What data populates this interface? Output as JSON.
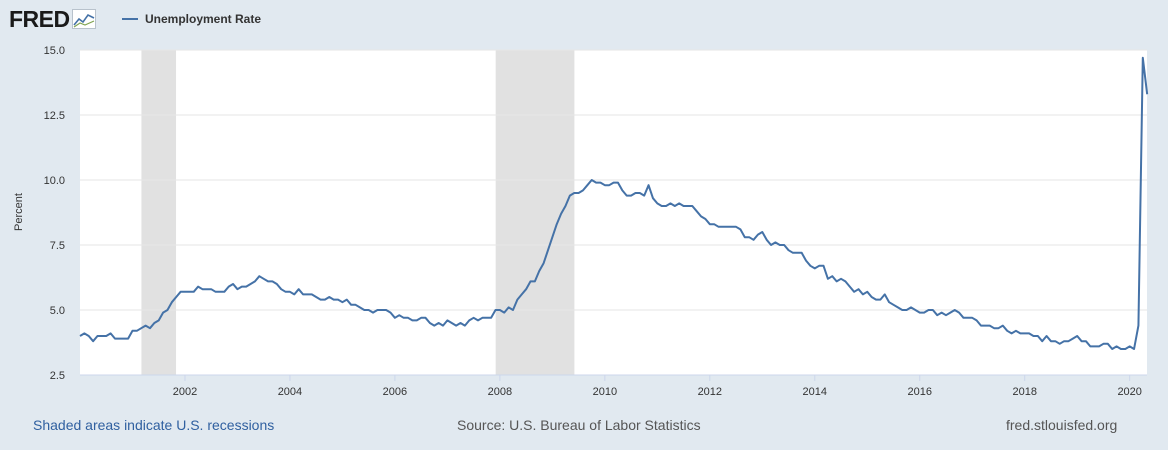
{
  "header": {
    "logo_text": "FRED",
    "logo_icon": "fred-chart-icon"
  },
  "footer": {
    "recessions_note": "Shaded areas indicate U.S. recessions",
    "source": "Source: U.S. Bureau of Labor Statistics",
    "site": "fred.stlouisfed.org"
  },
  "colors": {
    "series": "#4572a7",
    "recession_shade": "#e1e1e1",
    "page_background": "#e1e9f0",
    "plot_background": "#ffffff",
    "link": "#3060a0"
  },
  "chart_data": {
    "type": "line",
    "title": "",
    "xlabel": "",
    "ylabel": "Percent",
    "xlim": [
      2000.0,
      2020.33
    ],
    "ylim": [
      2.5,
      15.0
    ],
    "y_ticks": [
      "2.5",
      "5.0",
      "7.5",
      "10.0",
      "12.5",
      "15.0"
    ],
    "x_ticks": [
      "2002",
      "2004",
      "2006",
      "2008",
      "2010",
      "2012",
      "2014",
      "2016",
      "2018",
      "2020"
    ],
    "grid": "horizontal",
    "legend": "top-left",
    "recessions": [
      {
        "start": 2001.17,
        "end": 2001.83
      },
      {
        "start": 2007.92,
        "end": 2009.42
      }
    ],
    "series": [
      {
        "name": "Unemployment Rate",
        "color": "#4572a7",
        "start_year": 2000,
        "start_month": 1,
        "frequency": "monthly",
        "values": [
          4.0,
          4.1,
          4.0,
          3.8,
          4.0,
          4.0,
          4.0,
          4.1,
          3.9,
          3.9,
          3.9,
          3.9,
          4.2,
          4.2,
          4.3,
          4.4,
          4.3,
          4.5,
          4.6,
          4.9,
          5.0,
          5.3,
          5.5,
          5.7,
          5.7,
          5.7,
          5.7,
          5.9,
          5.8,
          5.8,
          5.8,
          5.7,
          5.7,
          5.7,
          5.9,
          6.0,
          5.8,
          5.9,
          5.9,
          6.0,
          6.1,
          6.3,
          6.2,
          6.1,
          6.1,
          6.0,
          5.8,
          5.7,
          5.7,
          5.6,
          5.8,
          5.6,
          5.6,
          5.6,
          5.5,
          5.4,
          5.4,
          5.5,
          5.4,
          5.4,
          5.3,
          5.4,
          5.2,
          5.2,
          5.1,
          5.0,
          5.0,
          4.9,
          5.0,
          5.0,
          5.0,
          4.9,
          4.7,
          4.8,
          4.7,
          4.7,
          4.6,
          4.6,
          4.7,
          4.7,
          4.5,
          4.4,
          4.5,
          4.4,
          4.6,
          4.5,
          4.4,
          4.5,
          4.4,
          4.6,
          4.7,
          4.6,
          4.7,
          4.7,
          4.7,
          5.0,
          5.0,
          4.9,
          5.1,
          5.0,
          5.4,
          5.6,
          5.8,
          6.1,
          6.1,
          6.5,
          6.8,
          7.3,
          7.8,
          8.3,
          8.7,
          9.0,
          9.4,
          9.5,
          9.5,
          9.6,
          9.8,
          10.0,
          9.9,
          9.9,
          9.8,
          9.8,
          9.9,
          9.9,
          9.6,
          9.4,
          9.4,
          9.5,
          9.5,
          9.4,
          9.8,
          9.3,
          9.1,
          9.0,
          9.0,
          9.1,
          9.0,
          9.1,
          9.0,
          9.0,
          9.0,
          8.8,
          8.6,
          8.5,
          8.3,
          8.3,
          8.2,
          8.2,
          8.2,
          8.2,
          8.2,
          8.1,
          7.8,
          7.8,
          7.7,
          7.9,
          8.0,
          7.7,
          7.5,
          7.6,
          7.5,
          7.5,
          7.3,
          7.2,
          7.2,
          7.2,
          6.9,
          6.7,
          6.6,
          6.7,
          6.7,
          6.2,
          6.3,
          6.1,
          6.2,
          6.1,
          5.9,
          5.7,
          5.8,
          5.6,
          5.7,
          5.5,
          5.4,
          5.4,
          5.6,
          5.3,
          5.2,
          5.1,
          5.0,
          5.0,
          5.1,
          5.0,
          4.9,
          4.9,
          5.0,
          5.0,
          4.8,
          4.9,
          4.8,
          4.9,
          5.0,
          4.9,
          4.7,
          4.7,
          4.7,
          4.6,
          4.4,
          4.4,
          4.4,
          4.3,
          4.3,
          4.4,
          4.2,
          4.1,
          4.2,
          4.1,
          4.1,
          4.1,
          4.0,
          4.0,
          3.8,
          4.0,
          3.8,
          3.8,
          3.7,
          3.8,
          3.8,
          3.9,
          4.0,
          3.8,
          3.8,
          3.6,
          3.6,
          3.6,
          3.7,
          3.7,
          3.5,
          3.6,
          3.5,
          3.5,
          3.6,
          3.5,
          4.4,
          14.7,
          13.3
        ]
      }
    ]
  }
}
